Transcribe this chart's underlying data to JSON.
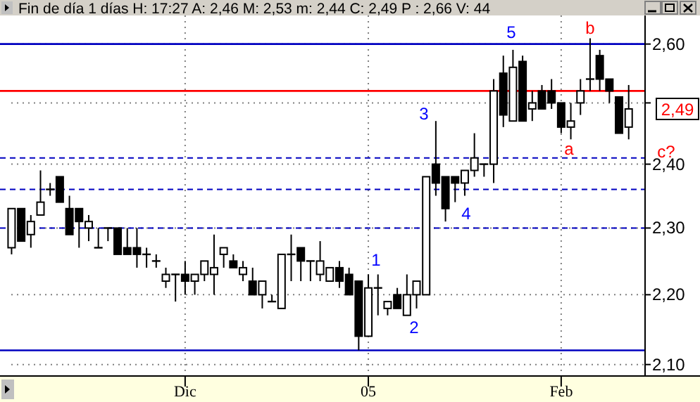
{
  "chart_data": {
    "type": "candlestick",
    "title": "Fin de día 1 días H: 17:27 A: 2,46 M: 2,53 m: 2,44 C: 2,49 P : 2,66 V: 44",
    "categories": [
      null,
      null,
      null,
      null,
      null,
      null,
      null,
      null,
      null,
      null,
      null,
      null,
      null,
      null,
      null,
      null,
      null,
      null,
      "Dic",
      null,
      null,
      null,
      null,
      null,
      null,
      null,
      null,
      null,
      null,
      null,
      null,
      null,
      null,
      null,
      null,
      null,
      null,
      "05",
      null,
      null,
      null,
      null,
      null,
      null,
      null,
      null,
      null,
      null,
      null,
      null,
      null,
      null,
      null,
      null,
      null,
      null,
      null,
      "Feb",
      null,
      null,
      null,
      null,
      null,
      null,
      null
    ],
    "series": [
      {
        "color": "#000000",
        "ohlc": [
          [
            2.27,
            2.33,
            2.26,
            2.33
          ],
          [
            2.33,
            2.33,
            2.28,
            2.28
          ],
          [
            2.29,
            2.32,
            2.27,
            2.31
          ],
          [
            2.32,
            2.39,
            2.32,
            2.34
          ],
          [
            2.36,
            2.37,
            2.35,
            2.36
          ],
          [
            2.38,
            2.38,
            2.34,
            2.34
          ],
          [
            2.33,
            2.35,
            2.29,
            2.29
          ],
          [
            2.33,
            2.33,
            2.27,
            2.31
          ],
          [
            2.3,
            2.32,
            2.28,
            2.31
          ],
          [
            2.27,
            2.3,
            2.27,
            2.27
          ],
          [
            2.3,
            2.3,
            2.28,
            2.3
          ],
          [
            2.3,
            2.3,
            2.26,
            2.26
          ],
          [
            2.27,
            2.3,
            2.26,
            2.26
          ],
          [
            2.27,
            2.3,
            2.24,
            2.26
          ],
          [
            2.26,
            2.27,
            2.24,
            2.26
          ],
          [
            2.25,
            2.26,
            2.24,
            2.25
          ],
          [
            2.22,
            2.24,
            2.21,
            2.23
          ],
          [
            2.23,
            2.23,
            2.19,
            2.23
          ],
          [
            2.23,
            2.25,
            2.2,
            2.22
          ],
          [
            2.22,
            2.23,
            2.2,
            2.23
          ],
          [
            2.23,
            2.25,
            2.22,
            2.25
          ],
          [
            2.23,
            2.29,
            2.2,
            2.24
          ],
          [
            2.26,
            2.27,
            2.24,
            2.27
          ],
          [
            2.25,
            2.26,
            2.24,
            2.24
          ],
          [
            2.23,
            2.25,
            2.22,
            2.24
          ],
          [
            2.22,
            2.24,
            2.2,
            2.2
          ],
          [
            2.2,
            2.22,
            2.18,
            2.22
          ],
          [
            2.19,
            2.2,
            2.19,
            2.19
          ],
          [
            2.18,
            2.26,
            2.18,
            2.26
          ],
          [
            2.26,
            2.29,
            2.22,
            2.26
          ],
          [
            2.27,
            2.27,
            2.22,
            2.25
          ],
          [
            2.25,
            2.25,
            2.22,
            2.25
          ],
          [
            2.23,
            2.28,
            2.22,
            2.25
          ],
          [
            2.22,
            2.24,
            2.22,
            2.24
          ],
          [
            2.24,
            2.25,
            2.21,
            2.22
          ],
          [
            2.23,
            2.24,
            2.2,
            2.2
          ],
          [
            2.22,
            2.22,
            2.12,
            2.14
          ],
          [
            2.14,
            2.23,
            2.14,
            2.21
          ],
          [
            2.21,
            2.23,
            2.17,
            2.21
          ],
          [
            2.18,
            2.19,
            2.17,
            2.19
          ],
          [
            2.2,
            2.21,
            2.18,
            2.18
          ],
          [
            2.17,
            2.23,
            2.17,
            2.2
          ],
          [
            2.2,
            2.22,
            2.18,
            2.22
          ],
          [
            2.2,
            2.38,
            2.2,
            2.38
          ],
          [
            2.4,
            2.47,
            2.35,
            2.37
          ],
          [
            2.38,
            2.38,
            2.31,
            2.33
          ],
          [
            2.38,
            2.38,
            2.34,
            2.37
          ],
          [
            2.37,
            2.39,
            2.35,
            2.39
          ],
          [
            2.39,
            2.45,
            2.38,
            2.41
          ],
          [
            2.4,
            2.4,
            2.38,
            2.4
          ],
          [
            2.4,
            2.54,
            2.37,
            2.52
          ],
          [
            2.55,
            2.58,
            2.46,
            2.48
          ],
          [
            2.47,
            2.59,
            2.47,
            2.56
          ],
          [
            2.57,
            2.58,
            2.47,
            2.47
          ],
          [
            2.49,
            2.52,
            2.47,
            2.5
          ],
          [
            2.52,
            2.53,
            2.49,
            2.49
          ],
          [
            2.52,
            2.54,
            2.49,
            2.5
          ],
          [
            2.5,
            2.5,
            2.45,
            2.46
          ],
          [
            2.46,
            2.5,
            2.44,
            2.47
          ],
          [
            2.5,
            2.54,
            2.48,
            2.52
          ],
          [
            2.54,
            2.61,
            2.52,
            2.54
          ],
          [
            2.58,
            2.59,
            2.52,
            2.54
          ],
          [
            2.54,
            2.54,
            2.5,
            2.52
          ],
          [
            2.51,
            2.51,
            2.45,
            2.45
          ],
          [
            2.46,
            2.53,
            2.44,
            2.49
          ]
        ]
      }
    ],
    "ylim": [
      2.085,
      2.65
    ],
    "log": "y",
    "yticks": [
      {
        "value": 2.1,
        "label": "2,10"
      },
      {
        "value": 2.2,
        "label": "2,20"
      },
      {
        "value": 2.3,
        "label": "2,30"
      },
      {
        "value": 2.4,
        "label": "2,40"
      },
      {
        "value": 2.5,
        "label": null
      },
      {
        "value": 2.6,
        "label": "2,60"
      }
    ],
    "grid": true,
    "ref_lines": [
      {
        "axis": "y",
        "value": 2.6,
        "color": "#0000c0",
        "line_style": "solid"
      },
      {
        "axis": "y",
        "value": 2.12,
        "color": "#0000c0",
        "line_style": "solid"
      },
      {
        "axis": "y",
        "value": 2.41,
        "color": "#0000c0",
        "line_style": "dashed"
      },
      {
        "axis": "y",
        "value": 2.36,
        "color": "#0000c0",
        "line_style": "dashed"
      },
      {
        "axis": "y",
        "value": 2.3,
        "color": "#0000c0",
        "line_style": "dashed"
      },
      {
        "axis": "y",
        "value": 2.52,
        "color": "#ff0000",
        "line_style": "solid"
      }
    ],
    "annotations": [
      "1",
      "2",
      "3",
      "4",
      "5",
      "a",
      "b",
      "c?",
      "2,49"
    ]
  }
}
